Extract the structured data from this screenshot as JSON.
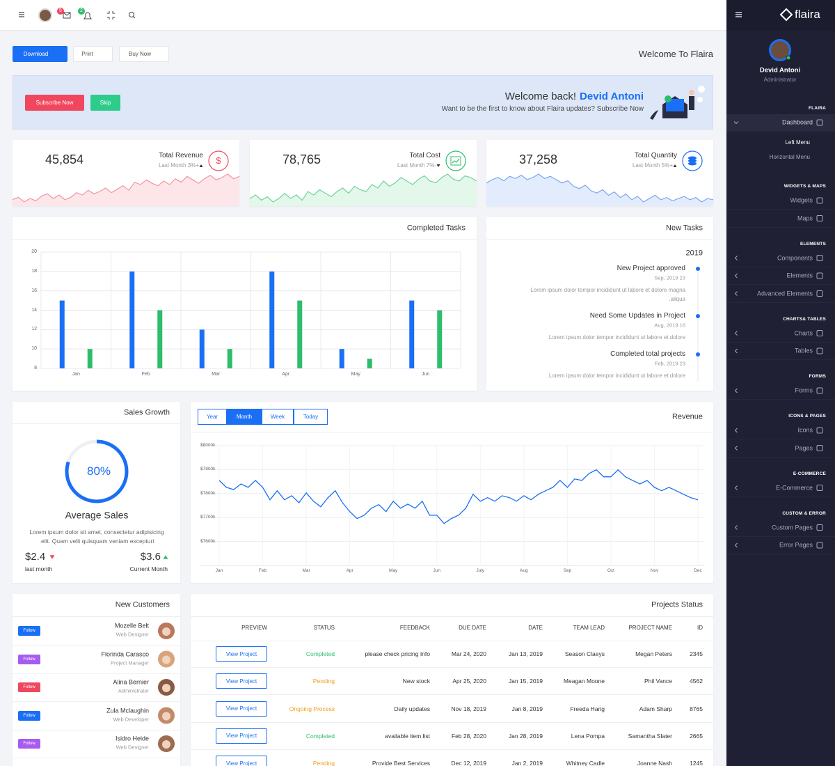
{
  "topbar": {
    "badges": [
      "5",
      "2"
    ]
  },
  "toolbar": {
    "buttons": [
      "Download",
      "Print",
      "Buy Now"
    ],
    "welcome": "Welcome To Flaira"
  },
  "banner": {
    "buttons": [
      "Subscribe Now",
      "Skip"
    ],
    "greeting": "Welcome back!",
    "name": "Devid Antoni",
    "text": "Want to be the first to know about Flaira updates? Subscribe Now"
  },
  "stats": [
    {
      "value": "45,854",
      "title": "Total Revenue",
      "sub": "Last Month 3%+",
      "trend": "up",
      "symbol": "$",
      "color": "#f0475f"
    },
    {
      "value": "78,765",
      "title": "Total Cost",
      "sub": "Last Month 7%-",
      "trend": "down",
      "icon": "chart",
      "color": "#2ebd6b"
    },
    {
      "value": "37,258",
      "title": "Total Quantity",
      "sub": "Last Month 5%+",
      "trend": "up",
      "icon": "database",
      "color": "#1a6ff5"
    }
  ],
  "chart_data": [
    {
      "type": "area",
      "color": "#f2949f",
      "fill": "#fde6e9",
      "values": [
        40,
        42,
        38,
        41,
        39,
        43,
        45,
        41,
        44,
        40,
        42,
        46,
        44,
        48,
        45,
        47,
        50,
        46,
        49,
        52,
        48,
        55,
        53,
        57,
        54,
        52,
        56,
        53,
        58,
        55,
        60,
        57,
        54,
        58,
        61,
        57,
        59,
        62,
        58,
        60
      ]
    },
    {
      "type": "area",
      "color": "#6fd39a",
      "fill": "#e3f7ea",
      "values": [
        40,
        42,
        39,
        41,
        38,
        40,
        43,
        40,
        42,
        39,
        44,
        42,
        45,
        43,
        41,
        44,
        46,
        43,
        47,
        45,
        44,
        48,
        46,
        50,
        47,
        49,
        52,
        50,
        48,
        51,
        53,
        50,
        49,
        52,
        54,
        51,
        50,
        53,
        52,
        50
      ]
    },
    {
      "type": "area",
      "color": "#7aa6f0",
      "fill": "#e3ecfc",
      "values": [
        55,
        58,
        60,
        57,
        61,
        59,
        62,
        58,
        60,
        63,
        59,
        61,
        58,
        55,
        57,
        52,
        50,
        53,
        48,
        46,
        49,
        44,
        47,
        42,
        45,
        40,
        43,
        38,
        41,
        44,
        40,
        42,
        39,
        41,
        43,
        40,
        42,
        38,
        41,
        40
      ]
    },
    {
      "type": "bar",
      "title": "Completed Tasks",
      "categories": [
        "Jan",
        "Feb",
        "Mar",
        "Apr",
        "May",
        "Jun"
      ],
      "series": [
        {
          "color": "#1a6ff5",
          "values": [
            15,
            18,
            12,
            18,
            10,
            15
          ]
        },
        {
          "color": "#2ebd6b",
          "values": [
            10,
            14,
            10,
            15,
            9,
            14
          ]
        }
      ],
      "ylim": [
        8,
        20
      ],
      "yticks": [
        8,
        10,
        12,
        14,
        16,
        18,
        20
      ],
      "grid": true
    },
    {
      "type": "line",
      "title": "Revenue",
      "tabs": {
        "labels": [
          "Year",
          "Month",
          "Week",
          "Today"
        ],
        "active": 1
      },
      "categories": [
        "Jan",
        null,
        null,
        null,
        null,
        null,
        "Feb",
        null,
        null,
        null,
        null,
        null,
        "Mar",
        null,
        null,
        null,
        null,
        null,
        "Apr",
        null,
        null,
        null,
        null,
        null,
        "May",
        null,
        null,
        null,
        null,
        null,
        "Jun",
        null,
        null,
        null,
        null,
        null,
        "July",
        null,
        null,
        null,
        null,
        null,
        "Aug",
        null,
        null,
        null,
        null,
        null,
        "Sep",
        null,
        null,
        null,
        null,
        null,
        "Oct",
        null,
        null,
        null,
        null,
        null,
        "Nov",
        null,
        null,
        null,
        null,
        null,
        "Dec"
      ],
      "values": [
        7855,
        7826,
        7817,
        7840,
        7826,
        7855,
        7826,
        7774,
        7812,
        7774,
        7791,
        7762,
        7803,
        7768,
        7745,
        7783,
        7812,
        7762,
        7725,
        7696,
        7710,
        7739,
        7754,
        7725,
        7768,
        7739,
        7756,
        7739,
        7768,
        7710,
        7710,
        7675,
        7696,
        7710,
        7739,
        7797,
        7768,
        7783,
        7768,
        7791,
        7783,
        7768,
        7791,
        7774,
        7797,
        7812,
        7826,
        7855,
        7826,
        7861,
        7855,
        7884,
        7899,
        7870,
        7870,
        7899,
        7870,
        7855,
        7840,
        7855,
        7826,
        7812,
        7826,
        7812,
        7797,
        7783,
        7774
      ],
      "color": "#1a6ff5",
      "ylim": [
        7500,
        8000
      ],
      "yticks": [
        {
          "value": 7600,
          "label": "$7600k"
        },
        {
          "value": 7700,
          "label": "$7700k"
        },
        {
          "value": 7800,
          "label": "$7800k"
        },
        {
          "value": 7900,
          "label": "$7900k"
        },
        {
          "value": 8000,
          "label": "$8000k"
        }
      ],
      "grid": true
    }
  ],
  "new_tasks": {
    "title": "New Tasks",
    "year": "2019",
    "items": [
      {
        "title": "New Project approved",
        "date": "Sep, 2019 23",
        "text": [
          "Lorem ipsum dolor tempor incididunt ut labore et dolore magna",
          ".aliqua"
        ]
      },
      {
        "title": "Need Some Updates in Project",
        "date": "Aug, 2019 16",
        "text": [
          ".Lorem ipsum dolor tempor incididunt ut labore et dolore"
        ]
      },
      {
        "title": "Completed total projects",
        "date": "Feb, 2019 23",
        "text": [
          ".Lorem ipsum dolor tempor incididunt ut labore et dolore"
        ]
      }
    ]
  },
  "sales_growth": {
    "title": "Sales Growth",
    "gauge": {
      "value": 80,
      "label": "80%"
    },
    "subtitle": "Average Sales",
    "text": [
      "Lorem ipsum dolor sit amet, consectetur adipisicing",
      ".elit. Quam velit quisquam veniam excepturi"
    ],
    "left": {
      "value": "$2.4",
      "label": "last month"
    },
    "right": {
      "value": "$3.6",
      "label": "Current Month"
    }
  },
  "customers": {
    "title": "New Customers",
    "items": [
      {
        "name": "Mozelle Belt",
        "role": "Web Designer",
        "action": "Follow",
        "color": "#1a6ff5"
      },
      {
        "name": "Florinda Carasco",
        "role": "Project Manager",
        "action": "Follow",
        "color": "#a75cf0"
      },
      {
        "name": "Alina Bernier",
        "role": "Administrator",
        "action": "Follow",
        "color": "#f0475f"
      },
      {
        "name": "Zula Mclaughin",
        "role": "Web Developer",
        "action": "Follow",
        "color": "#1a6ff5"
      },
      {
        "name": "Isidro Heide",
        "role": "Web Designer",
        "action": "Follow",
        "color": "#a75cf0"
      }
    ]
  },
  "projects": {
    "title": "Projects Status",
    "columns": [
      "PREVIEW",
      "STATUS",
      "FEEDBACK",
      "DUE DATE",
      "DATE",
      "TEAM LEAD",
      "PROJECT NAME",
      "ID"
    ],
    "rows": [
      [
        "View Project",
        "Completed",
        "please check pricing Info",
        "Mar 24, 2020",
        "Jan 13, 2019",
        "Season Claeys",
        "Megan Peters",
        "2345"
      ],
      [
        "View Project",
        "Pending",
        "New stock",
        "Apr 25, 2020",
        "Jan 15, 2019",
        "Meagan Moone",
        "Phil Vance",
        "4562"
      ],
      [
        "View Project",
        "Ongoing Process",
        "Daily updates",
        "Nov 18, 2019",
        "Jan 8, 2019",
        "Freeda Harig",
        "Adam Sharp",
        "8765"
      ],
      [
        "View Project",
        "Completed",
        "available item list",
        "Feb 28, 2020",
        "Jan 28, 2019",
        "Lena Pompa",
        "Samantha Slater",
        "2665"
      ],
      [
        "View Project",
        "Pending",
        "Provide Best Services",
        "Dec 12, 2019",
        "Jan 2, 2019",
        "Whitney Cadle",
        "Joanne Nash",
        "1245"
      ]
    ],
    "status_colors": [
      "#2ebd6b",
      "#f39c12",
      "#f39c12",
      "#2ebd6b",
      "#f39c12"
    ]
  },
  "sidebar": {
    "brand": "flaira",
    "user": {
      "name": "Devid Antoni",
      "role": "Administrator"
    },
    "sections": [
      {
        "header": "FLAIRA",
        "items": [
          {
            "label": "Dashboard",
            "chevron": true,
            "active": true
          },
          {
            "label": "Left Menu",
            "sub": true,
            "current": true
          },
          {
            "label": "Horizontal Menu",
            "sub": true
          }
        ]
      },
      {
        "header": "WIDGETS & MAPS",
        "items": [
          {
            "label": "Widgets"
          },
          {
            "label": "Maps"
          }
        ]
      },
      {
        "header": "ELEMENTS",
        "items": [
          {
            "label": "Components",
            "chevron": true
          },
          {
            "label": "Elements",
            "chevron": true
          },
          {
            "label": "Advanced Elements",
            "chevron": true
          }
        ]
      },
      {
        "header": "CHARTS& TABLES",
        "items": [
          {
            "label": "Charts",
            "chevron": true
          },
          {
            "label": "Tables",
            "chevron": true
          }
        ]
      },
      {
        "header": "FORMS",
        "items": [
          {
            "label": "Forms",
            "chevron": true
          }
        ]
      },
      {
        "header": "ICONS & PAGES",
        "items": [
          {
            "label": "Icons",
            "chevron": true
          },
          {
            "label": "Pages",
            "chevron": true
          }
        ]
      },
      {
        "header": "E-COMMERCE",
        "items": [
          {
            "label": "E-Commerce",
            "chevron": true
          }
        ]
      },
      {
        "header": "CUSTOM & ERROR",
        "items": [
          {
            "label": "Custom Pages",
            "chevron": true
          },
          {
            "label": "Error Pages",
            "chevron": true
          }
        ]
      }
    ]
  }
}
